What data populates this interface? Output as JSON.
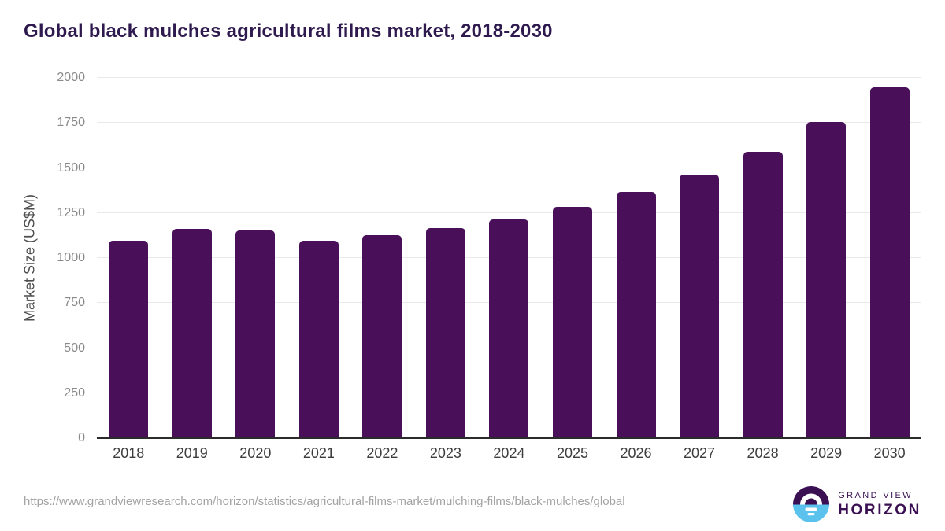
{
  "title": "Global black mulches agricultural films market, 2018-2030",
  "footer": {
    "source_url": "https://www.grandviewresearch.com/horizon/statistics/agricultural-films-market/mulching-films/black-mulches/global",
    "logo": {
      "line1": "GRAND VIEW",
      "line2": "HORIZON"
    }
  },
  "colors": {
    "bar": "#491059",
    "title": "#2f1a4f",
    "axis_line": "#2b2b2b",
    "gridline": "#e9e9e9",
    "tick_label": "#8a8a8a",
    "x_label": "#3d3d3d",
    "axis_title": "#4d4d4d",
    "url": "#a3a3a3",
    "logo_purple": "#3b1053",
    "logo_blue": "#5bc2ee"
  },
  "chart_data": {
    "type": "bar",
    "title": "Global black mulches agricultural films market, 2018-2030",
    "categories": [
      "2018",
      "2019",
      "2020",
      "2021",
      "2022",
      "2023",
      "2024",
      "2025",
      "2026",
      "2027",
      "2028",
      "2029",
      "2030"
    ],
    "values": [
      1095,
      1160,
      1152,
      1094,
      1125,
      1165,
      1216,
      1285,
      1366,
      1465,
      1591,
      1754,
      1946
    ],
    "xlabel": "",
    "ylabel": "Market Size (US$M)",
    "ylim": [
      0,
      2000
    ],
    "yticks": [
      0,
      250,
      500,
      750,
      1000,
      1250,
      1500,
      1750,
      2000
    ],
    "grid": true,
    "legend": false,
    "bar_color": "#491059"
  }
}
